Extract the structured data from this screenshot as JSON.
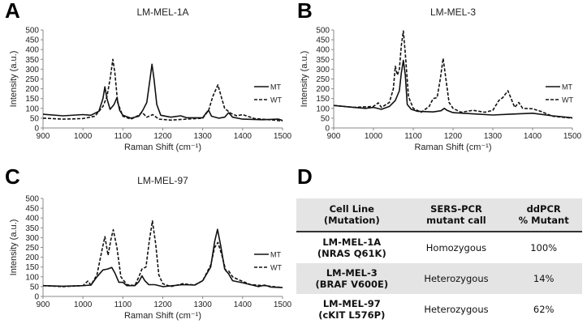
{
  "panel_letters": [
    "A",
    "B",
    "C",
    "D"
  ],
  "chart_data": [
    {
      "type": "line",
      "title": "LM-MEL-1A",
      "xlabel": "Raman Shift (cm-1)",
      "ylabel": "Intensity (a.u.)",
      "xlim": [
        900,
        1500
      ],
      "ylim": [
        0,
        500
      ],
      "xticks": [
        900,
        1000,
        1100,
        1200,
        1300,
        1400,
        1500
      ],
      "yticks": [
        0,
        50,
        100,
        150,
        200,
        250,
        300,
        350,
        400,
        450,
        500
      ],
      "grid": false,
      "legend": "right",
      "series": [
        {
          "name": "MT",
          "style": "solid",
          "points": [
            [
              900,
              70
            ],
            [
              950,
              62
            ],
            [
              1000,
              68
            ],
            [
              1020,
              65
            ],
            [
              1040,
              85
            ],
            [
              1050,
              150
            ],
            [
              1055,
              210
            ],
            [
              1060,
              150
            ],
            [
              1068,
              95
            ],
            [
              1078,
              120
            ],
            [
              1085,
              155
            ],
            [
              1092,
              90
            ],
            [
              1100,
              65
            ],
            [
              1120,
              50
            ],
            [
              1140,
              60
            ],
            [
              1150,
              90
            ],
            [
              1160,
              130
            ],
            [
              1168,
              250
            ],
            [
              1173,
              325
            ],
            [
              1178,
              250
            ],
            [
              1185,
              120
            ],
            [
              1195,
              65
            ],
            [
              1220,
              55
            ],
            [
              1245,
              62
            ],
            [
              1260,
              52
            ],
            [
              1300,
              52
            ],
            [
              1310,
              80
            ],
            [
              1315,
              90
            ],
            [
              1322,
              60
            ],
            [
              1340,
              50
            ],
            [
              1355,
              55
            ],
            [
              1365,
              78
            ],
            [
              1375,
              55
            ],
            [
              1400,
              45
            ],
            [
              1450,
              42
            ],
            [
              1490,
              45
            ],
            [
              1500,
              38
            ]
          ]
        },
        {
          "name": "WT",
          "style": "dashed",
          "points": [
            [
              900,
              50
            ],
            [
              950,
              45
            ],
            [
              1000,
              48
            ],
            [
              1030,
              60
            ],
            [
              1050,
              110
            ],
            [
              1060,
              160
            ],
            [
              1068,
              250
            ],
            [
              1075,
              350
            ],
            [
              1080,
              280
            ],
            [
              1087,
              130
            ],
            [
              1100,
              60
            ],
            [
              1120,
              45
            ],
            [
              1140,
              65
            ],
            [
              1148,
              80
            ],
            [
              1160,
              55
            ],
            [
              1175,
              68
            ],
            [
              1190,
              45
            ],
            [
              1220,
              40
            ],
            [
              1260,
              45
            ],
            [
              1300,
              50
            ],
            [
              1315,
              90
            ],
            [
              1325,
              160
            ],
            [
              1338,
              220
            ],
            [
              1345,
              170
            ],
            [
              1355,
              100
            ],
            [
              1370,
              75
            ],
            [
              1385,
              62
            ],
            [
              1400,
              68
            ],
            [
              1430,
              48
            ],
            [
              1480,
              40
            ],
            [
              1500,
              35
            ]
          ]
        }
      ]
    },
    {
      "type": "line",
      "title": "LM-MEL-3",
      "xlabel": "Raman Shift (cm-1)",
      "ylabel": "Intensity (a.u.)",
      "xlim": [
        900,
        1500
      ],
      "ylim": [
        0,
        500
      ],
      "xticks": [
        900,
        1000,
        1100,
        1200,
        1300,
        1400,
        1500
      ],
      "yticks": [
        0,
        50,
        100,
        150,
        200,
        250,
        300,
        350,
        400,
        450,
        500
      ],
      "grid": false,
      "legend": "right",
      "series": [
        {
          "name": "MT",
          "style": "solid",
          "points": [
            [
              900,
              115
            ],
            [
              950,
              105
            ],
            [
              980,
              100
            ],
            [
              1000,
              105
            ],
            [
              1020,
              95
            ],
            [
              1040,
              110
            ],
            [
              1055,
              140
            ],
            [
              1065,
              190
            ],
            [
              1070,
              280
            ],
            [
              1075,
              345
            ],
            [
              1080,
              270
            ],
            [
              1085,
              120
            ],
            [
              1095,
              95
            ],
            [
              1110,
              85
            ],
            [
              1150,
              82
            ],
            [
              1170,
              88
            ],
            [
              1178,
              100
            ],
            [
              1185,
              90
            ],
            [
              1200,
              78
            ],
            [
              1250,
              72
            ],
            [
              1300,
              66
            ],
            [
              1340,
              70
            ],
            [
              1400,
              75
            ],
            [
              1450,
              62
            ],
            [
              1500,
              52
            ]
          ]
        },
        {
          "name": "WT",
          "style": "dashed",
          "points": [
            [
              900,
              115
            ],
            [
              950,
              105
            ],
            [
              1000,
              110
            ],
            [
              1012,
              128
            ],
            [
              1020,
              105
            ],
            [
              1040,
              130
            ],
            [
              1050,
              200
            ],
            [
              1055,
              315
            ],
            [
              1060,
              270
            ],
            [
              1065,
              300
            ],
            [
              1070,
              420
            ],
            [
              1075,
              495
            ],
            [
              1080,
              380
            ],
            [
              1088,
              160
            ],
            [
              1100,
              100
            ],
            [
              1120,
              80
            ],
            [
              1140,
              110
            ],
            [
              1150,
              150
            ],
            [
              1160,
              155
            ],
            [
              1168,
              250
            ],
            [
              1175,
              355
            ],
            [
              1182,
              250
            ],
            [
              1190,
              130
            ],
            [
              1200,
              100
            ],
            [
              1220,
              80
            ],
            [
              1250,
              90
            ],
            [
              1280,
              80
            ],
            [
              1300,
              90
            ],
            [
              1315,
              140
            ],
            [
              1325,
              155
            ],
            [
              1338,
              190
            ],
            [
              1348,
              140
            ],
            [
              1355,
              105
            ],
            [
              1365,
              130
            ],
            [
              1375,
              100
            ],
            [
              1400,
              98
            ],
            [
              1420,
              85
            ],
            [
              1450,
              60
            ],
            [
              1500,
              50
            ]
          ]
        }
      ]
    },
    {
      "type": "line",
      "title": "LM-MEL-97",
      "xlabel": "Raman Shift (cm-1)",
      "ylabel": "Intensity (a.u.)",
      "xlim": [
        900,
        1500
      ],
      "ylim": [
        0,
        500
      ],
      "xticks": [
        900,
        1000,
        1100,
        1200,
        1300,
        1400,
        1500
      ],
      "yticks": [
        0,
        50,
        100,
        150,
        200,
        250,
        300,
        350,
        400,
        450,
        500
      ],
      "grid": false,
      "legend": "right",
      "series": [
        {
          "name": "MT",
          "style": "solid",
          "points": [
            [
              900,
              55
            ],
            [
              950,
              52
            ],
            [
              1000,
              55
            ],
            [
              1020,
              58
            ],
            [
              1035,
              100
            ],
            [
              1050,
              135
            ],
            [
              1062,
              140
            ],
            [
              1072,
              148
            ],
            [
              1080,
              120
            ],
            [
              1090,
              72
            ],
            [
              1100,
              72
            ],
            [
              1110,
              55
            ],
            [
              1130,
              55
            ],
            [
              1140,
              75
            ],
            [
              1148,
              105
            ],
            [
              1155,
              80
            ],
            [
              1165,
              60
            ],
            [
              1180,
              60
            ],
            [
              1200,
              50
            ],
            [
              1250,
              60
            ],
            [
              1280,
              58
            ],
            [
              1300,
              80
            ],
            [
              1320,
              150
            ],
            [
              1330,
              280
            ],
            [
              1337,
              342
            ],
            [
              1345,
              260
            ],
            [
              1355,
              140
            ],
            [
              1365,
              115
            ],
            [
              1375,
              80
            ],
            [
              1400,
              70
            ],
            [
              1440,
              50
            ],
            [
              1455,
              58
            ],
            [
              1470,
              48
            ],
            [
              1500,
              45
            ]
          ]
        },
        {
          "name": "WT",
          "style": "dashed",
          "points": [
            [
              900,
              55
            ],
            [
              950,
              50
            ],
            [
              1000,
              55
            ],
            [
              1012,
              78
            ],
            [
              1020,
              58
            ],
            [
              1035,
              110
            ],
            [
              1048,
              240
            ],
            [
              1055,
              305
            ],
            [
              1063,
              210
            ],
            [
              1070,
              290
            ],
            [
              1076,
              340
            ],
            [
              1085,
              250
            ],
            [
              1095,
              100
            ],
            [
              1110,
              60
            ],
            [
              1130,
              55
            ],
            [
              1140,
              100
            ],
            [
              1148,
              140
            ],
            [
              1158,
              150
            ],
            [
              1166,
              280
            ],
            [
              1174,
              385
            ],
            [
              1182,
              270
            ],
            [
              1190,
              110
            ],
            [
              1200,
              65
            ],
            [
              1220,
              50
            ],
            [
              1250,
              65
            ],
            [
              1280,
              58
            ],
            [
              1300,
              80
            ],
            [
              1320,
              160
            ],
            [
              1330,
              250
            ],
            [
              1338,
              275
            ],
            [
              1348,
              210
            ],
            [
              1358,
              130
            ],
            [
              1365,
              130
            ],
            [
              1375,
              100
            ],
            [
              1390,
              85
            ],
            [
              1420,
              60
            ],
            [
              1455,
              55
            ],
            [
              1500,
              45
            ]
          ]
        }
      ]
    }
  ],
  "table": {
    "headers": [
      [
        "Cell Line",
        "(Mutation)"
      ],
      [
        "SERS-PCR",
        "mutant call"
      ],
      [
        "ddPCR",
        "% Mutant"
      ]
    ],
    "rows": [
      {
        "cell_line": "LM-MEL-1A",
        "mutation": "(NRAS Q61K)",
        "call": "Homozygous",
        "percent": "100%"
      },
      {
        "cell_line": "LM-MEL-3",
        "mutation": "(BRAF V600E)",
        "call": "Heterozygous",
        "percent": "14%"
      },
      {
        "cell_line": "LM-MEL-97",
        "mutation": "(cKIT L576P)",
        "call": "Heterozygous",
        "percent": "62%"
      }
    ]
  }
}
